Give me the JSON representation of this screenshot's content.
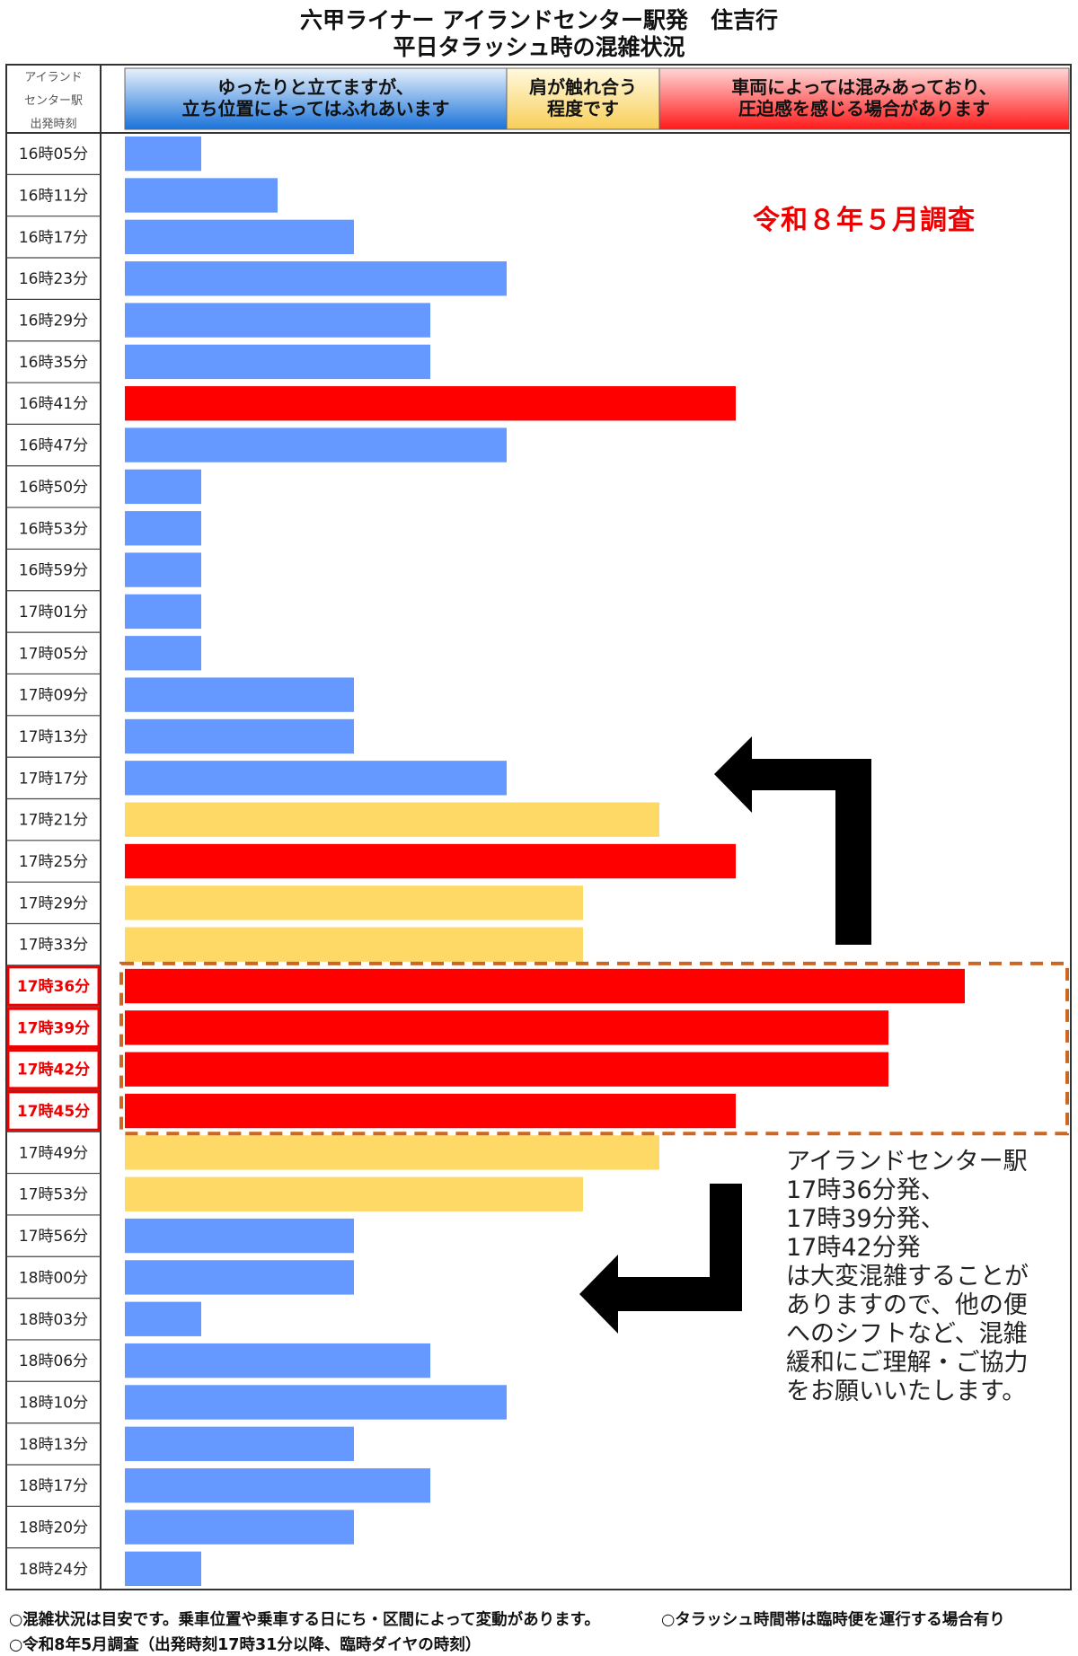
{
  "title_line1": "六甲ライナー アイランドセンター駅発　住吉行",
  "title_line2": "平日タラッシュ時の混雑状況",
  "header": {
    "time_col": [
      "アイランド",
      "センター駅",
      "出発時刻"
    ],
    "legend": [
      {
        "level": 1,
        "lines": [
          "ゆったりと立てますが、",
          "立ち位置によってはふれあいます"
        ],
        "color": "#6699ff"
      },
      {
        "level": 2,
        "lines": [
          "肩が触れ合う",
          "程度です"
        ],
        "color": "#ffd966"
      },
      {
        "level": 3,
        "lines": [
          "車両によっては混みあっており、",
          "圧迫感を感じる場合があります"
        ],
        "color": "#ff0000"
      }
    ]
  },
  "survey_label": "令和８年５月調査",
  "callout_lines": [
    "アイランドセンター駅",
    "17時36分発、",
    "17時39分発、",
    "17時42分発",
    "は大変混雑することが",
    "ありますので、他の便",
    "へのシフトなど、混雑",
    "緩和にご理解・ご協力",
    "をお願いいたします。"
  ],
  "notes": {
    "left": "○混雑状況は目安です。乗車位置や乗車する日にち・区間によって変動があります。",
    "right": "○タラッシュ時間帯は臨時便を運行する場合有り",
    "bottom": "○令和8年5月調査（出発時刻17時31分以降、臨時ダイヤの時刻）"
  },
  "colors": {
    "blue": "#6699ff",
    "yellow": "#ffd966",
    "red": "#ff0000",
    "highlight": "#cc6622",
    "arrow": "#000000"
  },
  "chart_data": {
    "type": "bar",
    "orientation": "horizontal",
    "value_scale": "congestion length in units of 1/10 of the legend width (0–12)",
    "highlighted": [
      "17時36分",
      "17時39分",
      "17時42分",
      "17時45分"
    ],
    "rows": [
      {
        "time": "16時05分",
        "value": 1,
        "level": "blue"
      },
      {
        "time": "16時11分",
        "value": 2,
        "level": "blue"
      },
      {
        "time": "16時17分",
        "value": 3,
        "level": "blue"
      },
      {
        "time": "16時23分",
        "value": 5,
        "level": "blue"
      },
      {
        "time": "16時29分",
        "value": 4,
        "level": "blue"
      },
      {
        "time": "16時35分",
        "value": 4,
        "level": "blue"
      },
      {
        "time": "16時41分",
        "value": 8,
        "level": "red"
      },
      {
        "time": "16時47分",
        "value": 5,
        "level": "blue"
      },
      {
        "time": "16時50分",
        "value": 1,
        "level": "blue"
      },
      {
        "time": "16時53分",
        "value": 1,
        "level": "blue"
      },
      {
        "time": "16時59分",
        "value": 1,
        "level": "blue"
      },
      {
        "time": "17時01分",
        "value": 1,
        "level": "blue"
      },
      {
        "time": "17時05分",
        "value": 1,
        "level": "blue"
      },
      {
        "time": "17時09分",
        "value": 3,
        "level": "blue"
      },
      {
        "time": "17時13分",
        "value": 3,
        "level": "blue"
      },
      {
        "time": "17時17分",
        "value": 5,
        "level": "blue"
      },
      {
        "time": "17時21分",
        "value": 7,
        "level": "yellow"
      },
      {
        "time": "17時25分",
        "value": 8,
        "level": "red"
      },
      {
        "time": "17時29分",
        "value": 6,
        "level": "yellow"
      },
      {
        "time": "17時33分",
        "value": 6,
        "level": "yellow"
      },
      {
        "time": "17時36分",
        "value": 11,
        "level": "red"
      },
      {
        "time": "17時39分",
        "value": 10,
        "level": "red"
      },
      {
        "time": "17時42分",
        "value": 10,
        "level": "red"
      },
      {
        "time": "17時45分",
        "value": 8,
        "level": "red"
      },
      {
        "time": "17時49分",
        "value": 7,
        "level": "yellow"
      },
      {
        "time": "17時53分",
        "value": 6,
        "level": "yellow"
      },
      {
        "time": "17時56分",
        "value": 3,
        "level": "blue"
      },
      {
        "time": "18時00分",
        "value": 3,
        "level": "blue"
      },
      {
        "time": "18時03分",
        "value": 1,
        "level": "blue"
      },
      {
        "time": "18時06分",
        "value": 4,
        "level": "blue"
      },
      {
        "time": "18時10分",
        "value": 5,
        "level": "blue"
      },
      {
        "time": "18時13分",
        "value": 3,
        "level": "blue"
      },
      {
        "time": "18時17分",
        "value": 4,
        "level": "blue"
      },
      {
        "time": "18時20分",
        "value": 3,
        "level": "blue"
      },
      {
        "time": "18時24分",
        "value": 1,
        "level": "blue"
      }
    ]
  }
}
